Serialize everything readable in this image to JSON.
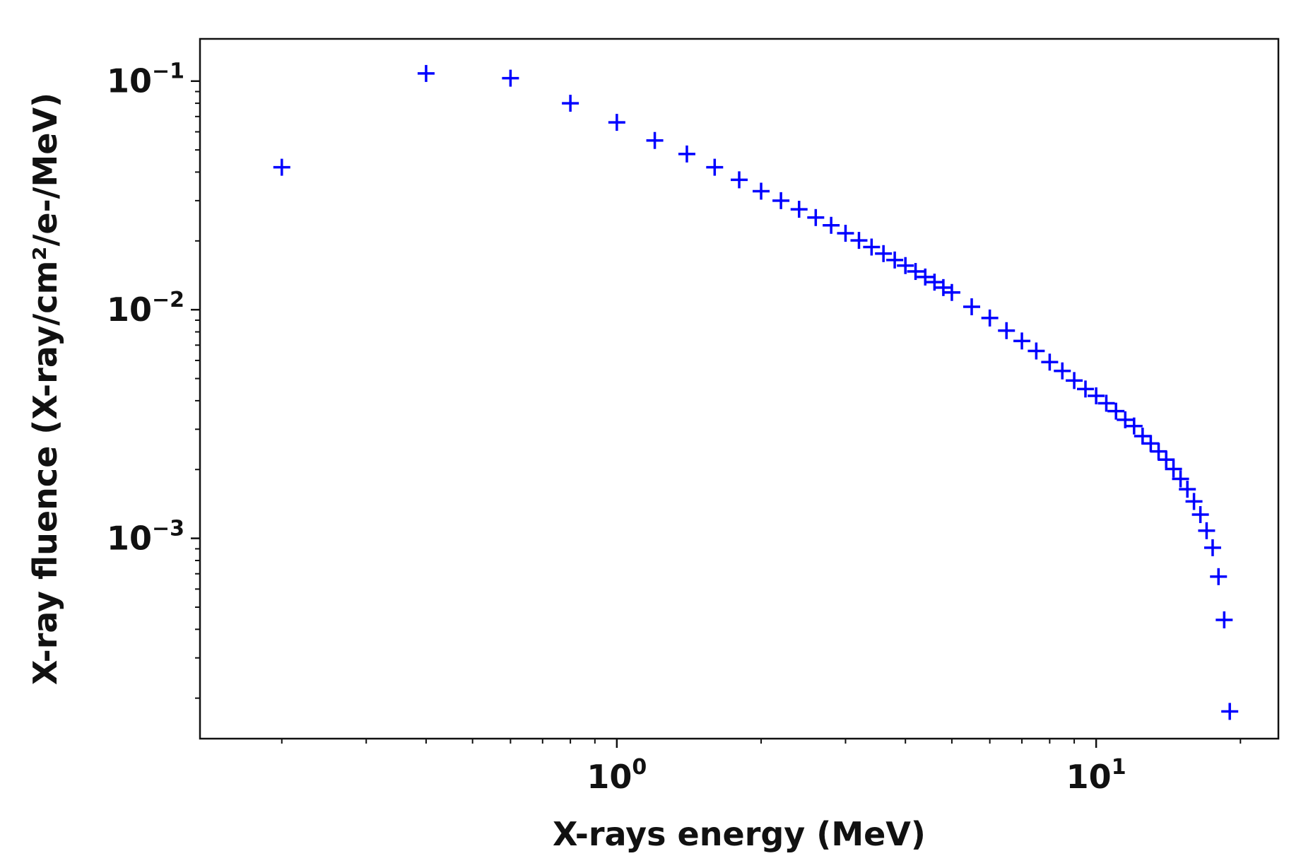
{
  "chart_data": {
    "type": "scatter",
    "title": "",
    "xlabel": "X-rays energy (MeV)",
    "ylabel": "X-ray fluence (X-ray/cm²/e-/MeV)",
    "xscale": "log",
    "yscale": "log",
    "xlim": [
      0.135,
      24
    ],
    "ylim": [
      0.000133,
      0.153
    ],
    "grid": false,
    "marker": "+",
    "color": "#0000ff",
    "x_ticks": [
      {
        "value": 1,
        "base": "10",
        "exp": "0"
      },
      {
        "value": 10,
        "base": "10",
        "exp": "1"
      }
    ],
    "y_ticks": [
      {
        "value": 0.1,
        "base": "10",
        "exp": "−1"
      },
      {
        "value": 0.01,
        "base": "10",
        "exp": "−2"
      },
      {
        "value": 0.001,
        "base": "10",
        "exp": "−3"
      }
    ],
    "series": [
      {
        "name": "X-ray fluence",
        "x": [
          0.2,
          0.4,
          0.6,
          0.8,
          1.0,
          1.2,
          1.4,
          1.6,
          1.8,
          2.0,
          2.2,
          2.4,
          2.6,
          2.8,
          3.0,
          3.2,
          3.4,
          3.6,
          3.8,
          4.0,
          4.2,
          4.4,
          4.6,
          4.8,
          5.0,
          5.5,
          6.0,
          6.5,
          7.0,
          7.5,
          8.0,
          8.5,
          9.0,
          9.5,
          10.0,
          10.5,
          11.0,
          11.5,
          12.0,
          12.5,
          13.0,
          13.5,
          14.0,
          14.5,
          15.0,
          15.5,
          16.0,
          16.5,
          17.0,
          17.5,
          18.0,
          18.5,
          19.0
        ],
        "y": [
          0.042,
          0.108,
          0.103,
          0.08,
          0.066,
          0.055,
          0.048,
          0.042,
          0.037,
          0.033,
          0.03,
          0.0275,
          0.0253,
          0.0234,
          0.0216,
          0.0201,
          0.0188,
          0.0176,
          0.0165,
          0.0156,
          0.0147,
          0.0139,
          0.0132,
          0.0125,
          0.0119,
          0.0103,
          0.0092,
          0.0081,
          0.0073,
          0.0066,
          0.0059,
          0.0054,
          0.0049,
          0.0045,
          0.0042,
          0.0039,
          0.0036,
          0.0033,
          0.0031,
          0.0028,
          0.0026,
          0.0024,
          0.00221,
          0.00201,
          0.00182,
          0.00164,
          0.00145,
          0.00127,
          0.00108,
          0.00091,
          0.00068,
          0.00044,
          0.000175
        ]
      }
    ]
  }
}
